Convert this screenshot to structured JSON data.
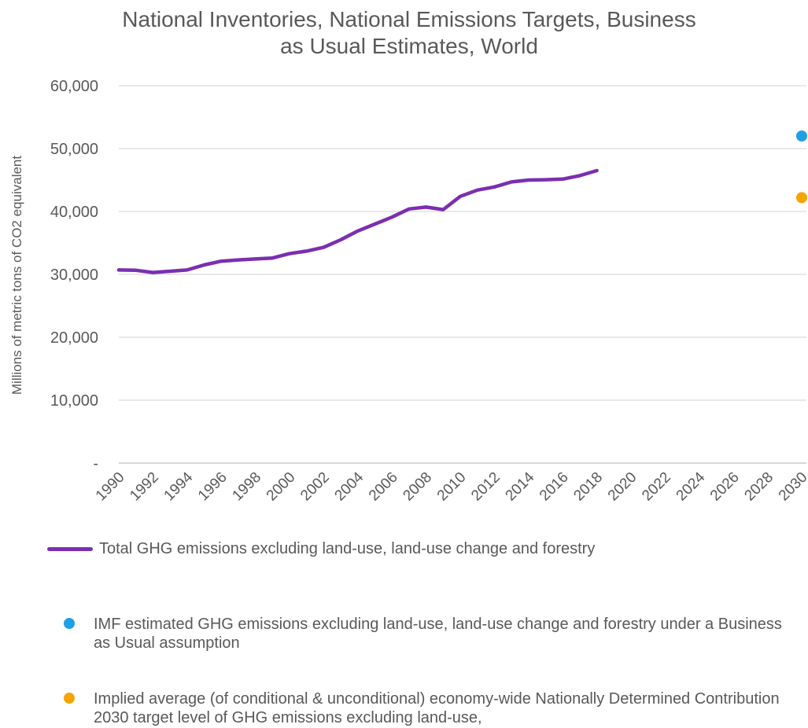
{
  "chart_data": {
    "type": "line",
    "title": "National Inventories, National Emissions Targets, Business\nas Usual Estimates, World",
    "ylabel": "Millions of metric tons of CO2 equivalent",
    "xlabel": "",
    "xlim": [
      1990,
      2030
    ],
    "ylim": [
      0,
      60000
    ],
    "x_ticks": [
      "1990",
      "1992",
      "1994",
      "1996",
      "1998",
      "2000",
      "2002",
      "2004",
      "2006",
      "2008",
      "2010",
      "2012",
      "2014",
      "2016",
      "2018",
      "2020",
      "2022",
      "2024",
      "2026",
      "2028",
      "2030"
    ],
    "y_ticks": [
      {
        "value": 0,
        "label": "-"
      },
      {
        "value": 10000,
        "label": "10,000"
      },
      {
        "value": 20000,
        "label": "20,000"
      },
      {
        "value": 30000,
        "label": "30,000"
      },
      {
        "value": 40000,
        "label": "40,000"
      },
      {
        "value": 50000,
        "label": "50,000"
      },
      {
        "value": 60000,
        "label": "60,000"
      }
    ],
    "grid": true,
    "legend_position": "bottom",
    "series": [
      {
        "name": "Total GHG emissions excluding land-use, land-use change and forestry",
        "type": "line",
        "color": "#7b2fb0",
        "x": [
          1990,
          1991,
          1992,
          1993,
          1994,
          1995,
          1996,
          1997,
          1998,
          1999,
          2000,
          2001,
          2002,
          2003,
          2004,
          2005,
          2006,
          2007,
          2008,
          2009,
          2010,
          2011,
          2012,
          2013,
          2014,
          2015,
          2016,
          2017,
          2018
        ],
        "y": [
          30700,
          30650,
          30300,
          30500,
          30700,
          31500,
          32100,
          32300,
          32450,
          32600,
          33300,
          33700,
          34300,
          35500,
          36900,
          38000,
          39100,
          40400,
          40700,
          40300,
          42400,
          43400,
          43900,
          44700,
          45000,
          45050,
          45150,
          45700,
          46500
        ]
      },
      {
        "name": "IMF estimated GHG emissions excluding land-use, land-use change and forestry under a Business as Usual assumption",
        "type": "scatter",
        "color": "#1fa0e3",
        "x": [
          2030
        ],
        "y": [
          52000
        ]
      },
      {
        "name": "Implied average (of conditional & unconditional) economy-wide Nationally Determined Contribution 2030 target level of GHG emissions excluding land-use,",
        "type": "scatter",
        "color": "#f5a400",
        "x": [
          2030
        ],
        "y": [
          42200
        ]
      }
    ]
  }
}
